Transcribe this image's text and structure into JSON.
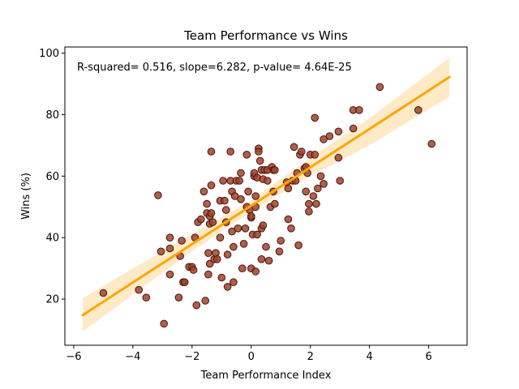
{
  "chart_data": {
    "type": "scatter",
    "title": "Team Performance vs Wins",
    "xlabel": "Team Performance Index",
    "ylabel": "Wins (%)",
    "annotation": "R-squared= 0.516, slope=6.282, p-value= 4.64E-25",
    "xlim": [
      -6.3,
      7.3
    ],
    "ylim": [
      5,
      102
    ],
    "xticks": [
      -6,
      -4,
      -2,
      0,
      2,
      4,
      6
    ],
    "xtick_labels": [
      "−6",
      "−4",
      "−2",
      "0",
      "2",
      "4",
      "6"
    ],
    "yticks": [
      20,
      40,
      60,
      80,
      100
    ],
    "ytick_labels": [
      "20",
      "40",
      "60",
      "80",
      "100"
    ],
    "grid": false,
    "colors": {
      "point_fill": "#a0442a",
      "point_edge": "#4a1410",
      "fit_line": "#ffa500",
      "ci_band": "#ffe8c2"
    },
    "regression": {
      "x_start": -5.7,
      "y_start": 14.8,
      "x_end": 6.7,
      "y_end": 92.2,
      "ci_lower": [
        [
          -5.7,
          9.4
        ],
        [
          -4,
          21.5
        ],
        [
          -2,
          35.5
        ],
        [
          0,
          48.5
        ],
        [
          2,
          60.0
        ],
        [
          4,
          70.0
        ],
        [
          6.7,
          85.8
        ]
      ],
      "ci_upper": [
        [
          -5.7,
          20.2
        ],
        [
          -4,
          30.0
        ],
        [
          -2,
          41.2
        ],
        [
          0,
          52.2
        ],
        [
          2,
          66.0
        ],
        [
          4,
          78.8
        ],
        [
          6.7,
          98.5
        ]
      ]
    },
    "points": [
      [
        -5.0,
        22
      ],
      [
        -3.8,
        23
      ],
      [
        -3.55,
        20.5
      ],
      [
        -3.15,
        53.8
      ],
      [
        -3.05,
        35.5
      ],
      [
        -2.95,
        12
      ],
      [
        -2.75,
        40
      ],
      [
        -2.75,
        36.5
      ],
      [
        -2.75,
        28
      ],
      [
        -2.45,
        20.5
      ],
      [
        -2.4,
        34
      ],
      [
        -2.35,
        39
      ],
      [
        -2.3,
        25.5
      ],
      [
        -2.25,
        25.5
      ],
      [
        -2.1,
        30.5
      ],
      [
        -2.0,
        30.5
      ],
      [
        -1.95,
        29.5
      ],
      [
        -1.9,
        40
      ],
      [
        -1.85,
        18
      ],
      [
        -1.8,
        45
      ],
      [
        -1.7,
        46
      ],
      [
        -1.6,
        55
      ],
      [
        -1.55,
        19.5
      ],
      [
        -1.5,
        51
      ],
      [
        -1.5,
        48
      ],
      [
        -1.45,
        28
      ],
      [
        -1.45,
        35
      ],
      [
        -1.4,
        47
      ],
      [
        -1.4,
        44.5
      ],
      [
        -1.4,
        31.5
      ],
      [
        -1.35,
        68
      ],
      [
        -1.35,
        57
      ],
      [
        -1.35,
        48
      ],
      [
        -1.3,
        45
      ],
      [
        -1.25,
        33
      ],
      [
        -1.2,
        35
      ],
      [
        -1.15,
        33
      ],
      [
        -1.05,
        40
      ],
      [
        -1.05,
        52
      ],
      [
        -1.0,
        27
      ],
      [
        -0.95,
        58.5
      ],
      [
        -0.9,
        52
      ],
      [
        -0.85,
        45
      ],
      [
        -0.85,
        49
      ],
      [
        -0.8,
        34.5
      ],
      [
        -0.8,
        24
      ],
      [
        -0.7,
        68
      ],
      [
        -0.7,
        58.5
      ],
      [
        -0.65,
        42
      ],
      [
        -0.65,
        55
      ],
      [
        -0.6,
        25.5
      ],
      [
        -0.6,
        37
      ],
      [
        -0.55,
        53.5
      ],
      [
        -0.5,
        58.5
      ],
      [
        -0.45,
        43
      ],
      [
        -0.4,
        58.5
      ],
      [
        -0.35,
        52.5
      ],
      [
        -0.35,
        61
      ],
      [
        -0.3,
        30
      ],
      [
        -0.25,
        38
      ],
      [
        -0.2,
        43
      ],
      [
        -0.15,
        67
      ],
      [
        -0.15,
        50
      ],
      [
        -0.1,
        55
      ],
      [
        -0.05,
        49
      ],
      [
        0.0,
        30
      ],
      [
        0.0,
        46.5
      ],
      [
        0.0,
        47
      ],
      [
        0.05,
        41
      ],
      [
        0.1,
        60
      ],
      [
        0.1,
        61
      ],
      [
        0.15,
        53.5
      ],
      [
        0.15,
        29
      ],
      [
        0.15,
        50
      ],
      [
        0.2,
        59.5
      ],
      [
        0.2,
        41
      ],
      [
        0.25,
        69
      ],
      [
        0.25,
        68
      ],
      [
        0.3,
        65
      ],
      [
        0.35,
        62
      ],
      [
        0.35,
        43
      ],
      [
        0.35,
        33
      ],
      [
        0.4,
        59
      ],
      [
        0.4,
        44
      ],
      [
        0.45,
        62
      ],
      [
        0.5,
        37
      ],
      [
        0.55,
        62
      ],
      [
        0.55,
        58.5
      ],
      [
        0.6,
        32.5
      ],
      [
        0.65,
        50
      ],
      [
        0.7,
        63
      ],
      [
        0.75,
        62
      ],
      [
        0.75,
        55
      ],
      [
        0.8,
        62
      ],
      [
        0.8,
        51
      ],
      [
        0.95,
        35.5
      ],
      [
        1.0,
        39
      ],
      [
        1.2,
        58
      ],
      [
        1.25,
        56
      ],
      [
        1.25,
        46
      ],
      [
        1.35,
        43
      ],
      [
        1.4,
        58.5
      ],
      [
        1.45,
        69.5
      ],
      [
        1.5,
        58.5
      ],
      [
        1.55,
        61
      ],
      [
        1.6,
        37.5
      ],
      [
        1.65,
        67
      ],
      [
        1.7,
        68
      ],
      [
        1.8,
        62.5
      ],
      [
        1.85,
        63
      ],
      [
        1.85,
        55
      ],
      [
        1.9,
        61
      ],
      [
        1.95,
        48.5
      ],
      [
        1.95,
        51
      ],
      [
        2.0,
        67
      ],
      [
        2.1,
        53.5
      ],
      [
        2.15,
        79
      ],
      [
        2.15,
        67
      ],
      [
        2.2,
        51
      ],
      [
        2.25,
        56
      ],
      [
        2.35,
        60
      ],
      [
        2.45,
        57.5
      ],
      [
        2.45,
        72
      ],
      [
        2.65,
        73
      ],
      [
        2.95,
        66
      ],
      [
        2.95,
        74.5
      ],
      [
        3.0,
        58.5
      ],
      [
        3.45,
        75.5
      ],
      [
        3.45,
        81.5
      ],
      [
        3.65,
        81.5
      ],
      [
        4.35,
        89
      ],
      [
        5.65,
        81.5
      ],
      [
        6.1,
        70.5
      ]
    ]
  }
}
